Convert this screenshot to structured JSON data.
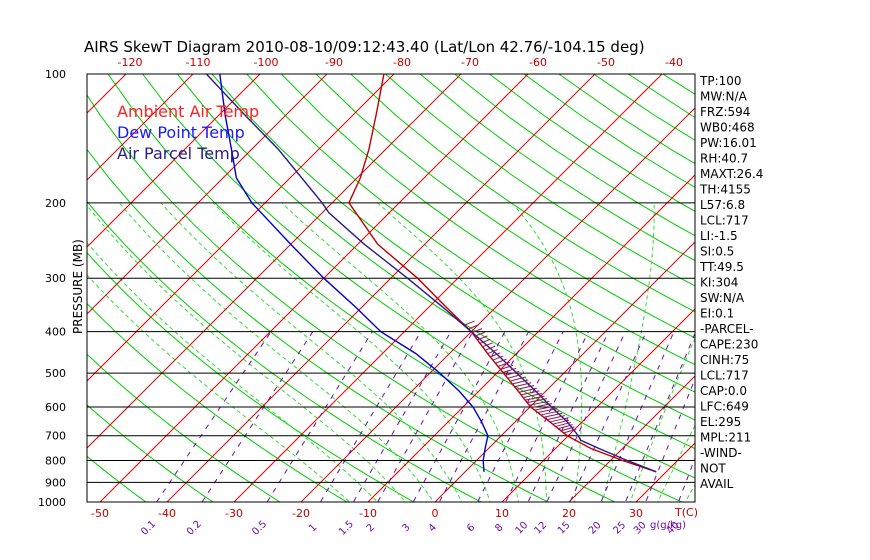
{
  "chart_data": {
    "type": "line",
    "title": "AIRS SkewT Diagram 2010-08-10/09:12:43.40 (Lat/Lon 42.76/-104.15 deg)",
    "ylabel": "PRESSURE (MB)",
    "xlabel": "T(C)",
    "mixing_ratio_label": "g(g/kg)",
    "pressure_ticks": [
      "100",
      "200",
      "300",
      "400",
      "500",
      "600",
      "700",
      "800",
      "900",
      "1000"
    ],
    "top_temp_ticks": [
      "-120",
      "-110",
      "-100",
      "-90",
      "-80",
      "-70",
      "-60",
      "-50",
      "-40"
    ],
    "bottom_temp_ticks": [
      "-50",
      "-40",
      "-30",
      "-20",
      "-10",
      "0",
      "10",
      "20",
      "30"
    ],
    "mixing_ratio_ticks": [
      "0.1",
      "0.2",
      "0.5",
      "1",
      "1.5",
      "2",
      "3",
      "4",
      "6",
      "8",
      "10",
      "12",
      "15",
      "20",
      "25",
      "30",
      "40"
    ],
    "legend": [
      {
        "label": "Ambient Air Temp",
        "color": "#ff2020"
      },
      {
        "label": "Dew Point Temp",
        "color": "#1a1aff"
      },
      {
        "label": "Air Parcel Temp",
        "color": "#2a1a8a"
      }
    ],
    "series": [
      {
        "name": "Ambient Air Temp",
        "color": "#c00000",
        "points": [
          [
            850,
            28.5
          ],
          [
            800,
            21.8
          ],
          [
            750,
            15.3
          ],
          [
            700,
            9.8
          ],
          [
            650,
            5.2
          ],
          [
            600,
            0.1
          ],
          [
            550,
            -4.2
          ],
          [
            500,
            -9.0
          ],
          [
            450,
            -14.3
          ],
          [
            400,
            -20.0
          ],
          [
            350,
            -27.5
          ],
          [
            300,
            -36.0
          ],
          [
            250,
            -47.0
          ],
          [
            200,
            -57.5
          ],
          [
            175,
            -59.5
          ],
          [
            150,
            -62.5
          ],
          [
            125,
            -66.5
          ],
          [
            100,
            -71.5
          ]
        ]
      },
      {
        "name": "Dew Point Temp",
        "color": "#0000cc",
        "points": [
          [
            850,
            2.8
          ],
          [
            800,
            1.0
          ],
          [
            750,
            -0.5
          ],
          [
            700,
            -2.0
          ],
          [
            650,
            -5.0
          ],
          [
            600,
            -8.5
          ],
          [
            550,
            -13.0
          ],
          [
            500,
            -18.5
          ],
          [
            450,
            -25.0
          ],
          [
            400,
            -33.5
          ],
          [
            350,
            -41.0
          ],
          [
            300,
            -50.0
          ],
          [
            250,
            -60.0
          ],
          [
            200,
            -72.0
          ],
          [
            175,
            -78.0
          ],
          [
            150,
            -83.0
          ],
          [
            125,
            -89.0
          ],
          [
            100,
            -96.0
          ]
        ]
      },
      {
        "name": "Air Parcel Temp",
        "color": "#2a1a8a",
        "points": [
          [
            850,
            28.5
          ],
          [
            800,
            22.5
          ],
          [
            750,
            16.5
          ],
          [
            717,
            12.5
          ],
          [
            700,
            11.5
          ],
          [
            650,
            7.8
          ],
          [
            600,
            3.2
          ],
          [
            550,
            -1.6
          ],
          [
            500,
            -7.0
          ],
          [
            450,
            -13.0
          ],
          [
            400,
            -20.0
          ],
          [
            350,
            -28.0
          ],
          [
            300,
            -37.5
          ],
          [
            250,
            -49.0
          ],
          [
            211,
            -59.0
          ],
          [
            200,
            -61.5
          ],
          [
            150,
            -76.0
          ],
          [
            125,
            -86.0
          ],
          [
            100,
            -98.0
          ]
        ]
      }
    ],
    "indices": [
      "TP:100",
      "MW:N/A",
      "FRZ:594",
      "WB0:468",
      "PW:16.01",
      "RH:40.7",
      "MAXT:26.4",
      "TH:4155",
      "L57:6.8",
      "LCL:717",
      "LI:-1.5",
      "SI:0.5",
      "TT:49.5",
      "KI:304",
      "SW:N/A",
      "EI:0.1",
      "-PARCEL-",
      "CAPE:230",
      "CINH:75",
      "LCL:717",
      "CAP:0.0",
      "LFC:649",
      "EL:295",
      "MPL:211",
      "-WIND-",
      "NOT",
      "AVAIL"
    ]
  }
}
